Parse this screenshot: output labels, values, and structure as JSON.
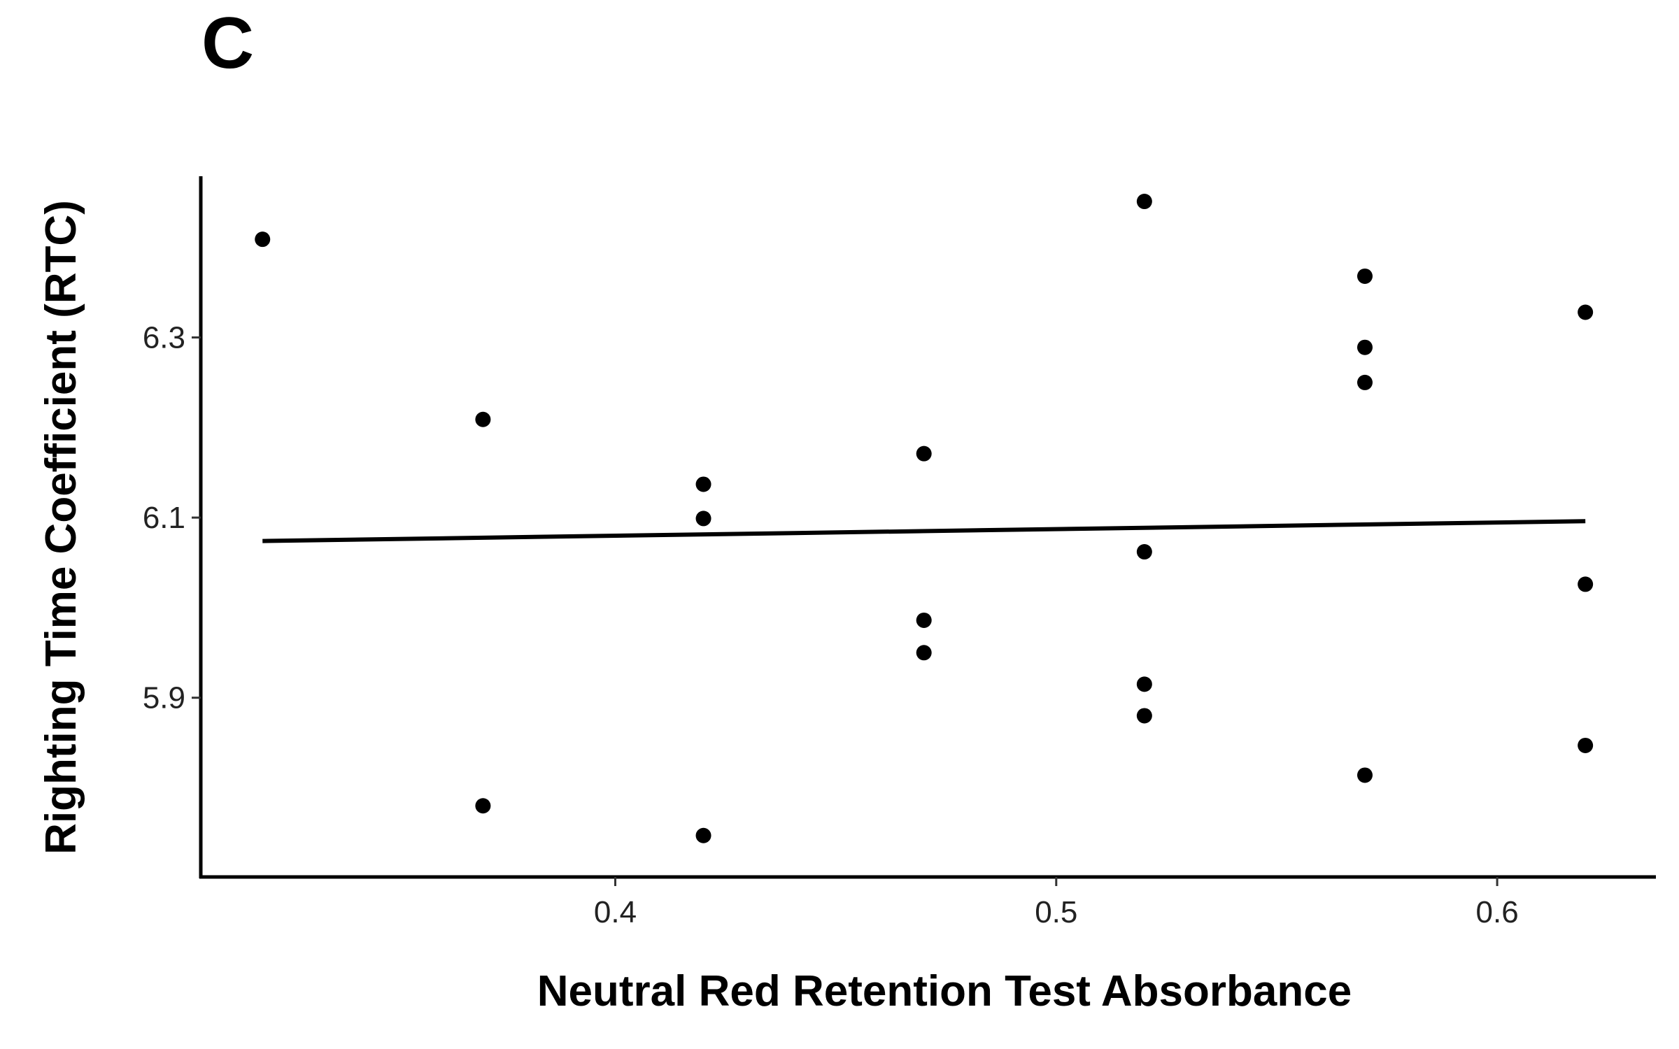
{
  "panel_label": "C",
  "chart_data": {
    "type": "scatter",
    "title": "",
    "xlabel": "Neutral Red Retention Test Absorbance",
    "ylabel": "Righting Time Coefficient (RTC)",
    "xlim": [
      0.306,
      0.636
    ],
    "ylim": [
      5.701,
      6.479
    ],
    "x_ticks": [
      0.4,
      0.5,
      0.6
    ],
    "x_tick_labels": [
      "0.4",
      "0.5",
      "0.6"
    ],
    "y_ticks": [
      5.9,
      6.1,
      6.3
    ],
    "y_tick_labels": [
      "5.9",
      "6.1",
      "6.3"
    ],
    "grid": false,
    "legend": "none",
    "points": [
      {
        "x": 0.32,
        "y": 6.409
      },
      {
        "x": 0.37,
        "y": 6.209
      },
      {
        "x": 0.37,
        "y": 5.78
      },
      {
        "x": 0.42,
        "y": 6.137
      },
      {
        "x": 0.42,
        "y": 6.099
      },
      {
        "x": 0.42,
        "y": 5.747
      },
      {
        "x": 0.47,
        "y": 6.171
      },
      {
        "x": 0.47,
        "y": 5.986
      },
      {
        "x": 0.47,
        "y": 5.95
      },
      {
        "x": 0.52,
        "y": 6.451
      },
      {
        "x": 0.52,
        "y": 6.062
      },
      {
        "x": 0.52,
        "y": 5.915
      },
      {
        "x": 0.52,
        "y": 5.88
      },
      {
        "x": 0.57,
        "y": 6.368
      },
      {
        "x": 0.57,
        "y": 6.289
      },
      {
        "x": 0.57,
        "y": 6.25
      },
      {
        "x": 0.57,
        "y": 5.814
      },
      {
        "x": 0.62,
        "y": 6.328
      },
      {
        "x": 0.62,
        "y": 6.026
      },
      {
        "x": 0.62,
        "y": 5.847
      }
    ],
    "trend_line": {
      "x": [
        0.32,
        0.62
      ],
      "y": [
        6.074,
        6.096
      ]
    },
    "colors": {
      "points": "#000000",
      "line": "#000000",
      "axis": "#000000"
    }
  }
}
